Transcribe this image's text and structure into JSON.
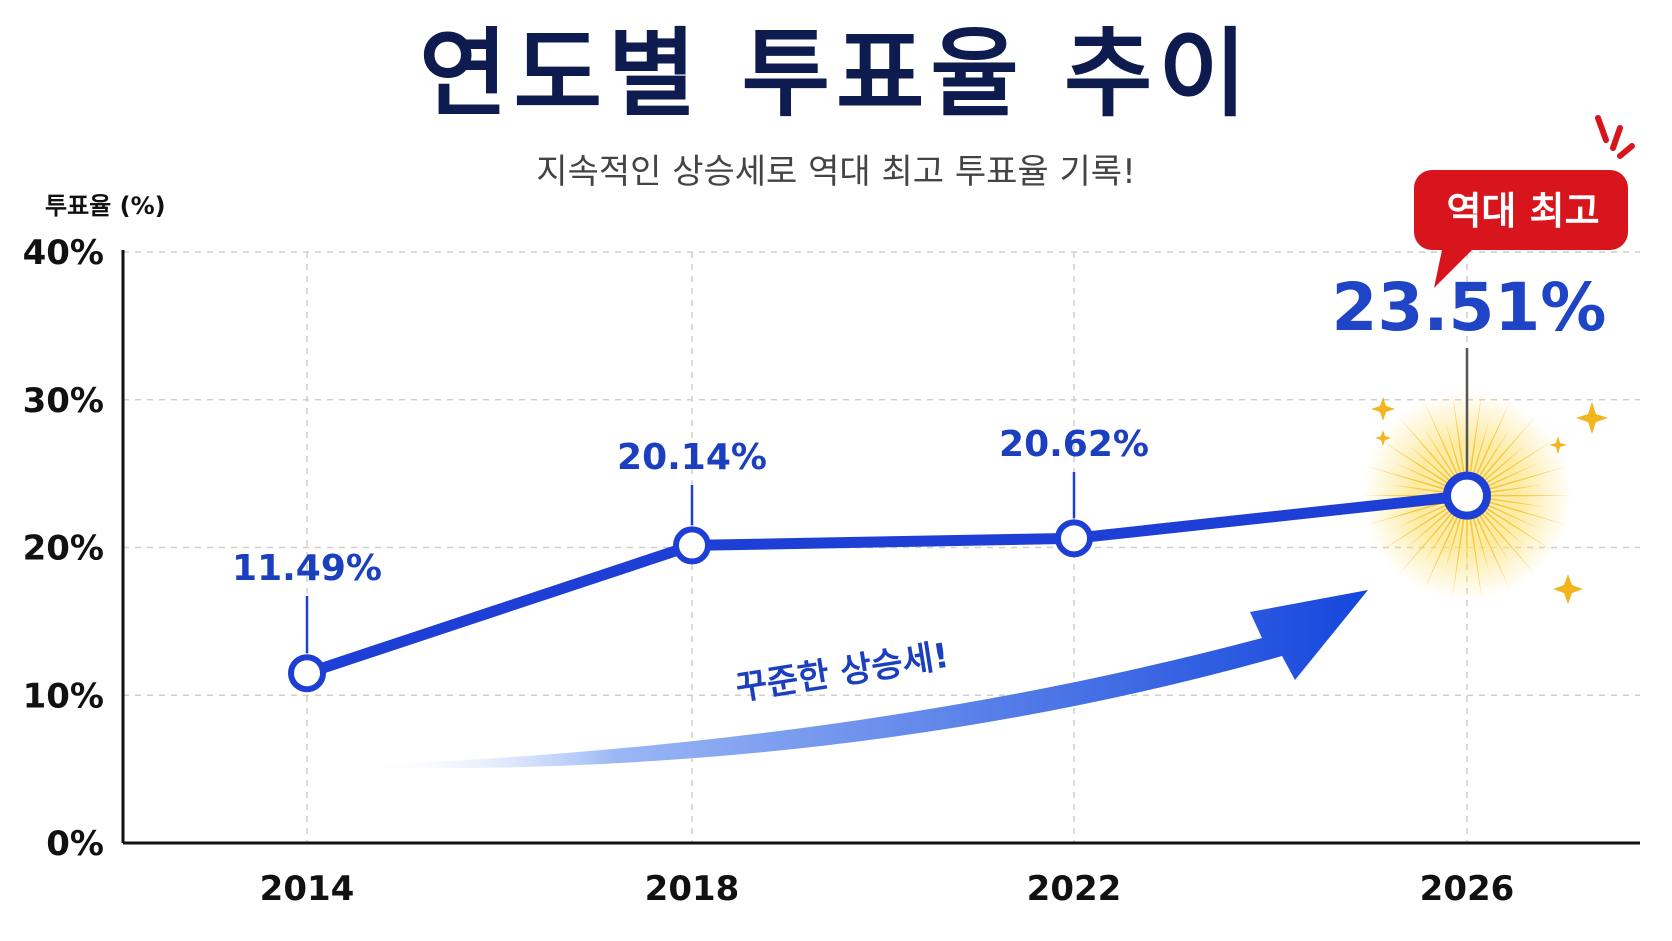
{
  "title": "연도별 투표율 추이",
  "subtitle": "지속적인 상승세로 역대 최고 투표율 기록!",
  "badge": "역대 최고",
  "trend_label": "꾸준한 상승세!",
  "colors": {
    "line": "#1d3fd6",
    "marker_fill": "#ffffff",
    "badge": "#d8141c",
    "title": "#0d1b4f",
    "burst": "#f6c02c"
  },
  "chart_data": {
    "type": "line",
    "title": "연도별 투표율 추이",
    "subtitle": "지속적인 상승세로 역대 최고 투표율 기록!",
    "ylabel": "투표율 (%)",
    "ylim": [
      0,
      40
    ],
    "yticks": [
      0,
      10,
      20,
      30,
      40
    ],
    "ytick_labels": [
      "0%",
      "10%",
      "20%",
      "30%",
      "40%"
    ],
    "categories": [
      "2014",
      "2018",
      "2022",
      "2026"
    ],
    "values": [
      11.49,
      20.14,
      20.62,
      23.51
    ],
    "data_labels": [
      "11.49%",
      "20.14%",
      "20.62%",
      "23.51%"
    ],
    "grid": true,
    "highlight_index": 3
  }
}
